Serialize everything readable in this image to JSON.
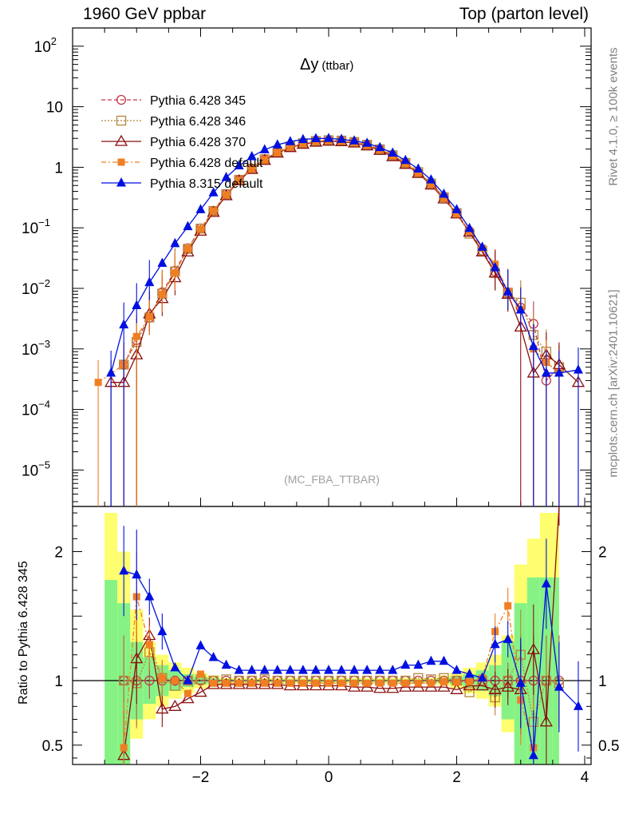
{
  "header": {
    "left": "1960 GeV ppbar",
    "right": "Top (parton level)"
  },
  "side": {
    "rivet": "Rivet 4.1.0, ≥ 100k events",
    "mcplots": "mcplots.cern.ch [arXiv:2401.10621]"
  },
  "colors": {
    "p345": "#c0394b",
    "p346": "#b5853a",
    "p370": "#8b0f0f",
    "pdef": "#f07e22",
    "p8": "#0010e0",
    "band_inner": "#86f286",
    "band_outer": "#fefe6e"
  },
  "chart_data": {
    "type": "line",
    "title": "Δy",
    "title_sub": "(ttbar)",
    "analysis_label": "(MC_FBA_TTBAR)",
    "xlabel": "",
    "ylabel": "",
    "ratio_ylabel": "Ratio to Pythia 6.428 345",
    "xlim": [
      -4.0,
      4.1
    ],
    "ylim": [
      2.5e-06,
      200
    ],
    "yscale": "log",
    "ratio_ylim": [
      0.35,
      2.35
    ],
    "x_ticks": [
      -2,
      0,
      2,
      4
    ],
    "x_tick_labels": [
      "−2",
      "0",
      "2",
      "4"
    ],
    "y_ticks": [
      {
        "exp": "2",
        "base": "10",
        "value": 100
      },
      {
        "exp": "",
        "base": "10",
        "value": 10
      },
      {
        "exp": "",
        "base": "1",
        "value": 1
      },
      {
        "exp": "−1",
        "base": "10",
        "value": 0.1
      },
      {
        "exp": "−2",
        "base": "10",
        "value": 0.01
      },
      {
        "exp": "−3",
        "base": "10",
        "value": 0.001
      },
      {
        "exp": "−4",
        "base": "10",
        "value": 0.0001
      },
      {
        "exp": "−5",
        "base": "10",
        "value": 1e-05
      }
    ],
    "ratio_ticks": [
      {
        "label": "2",
        "value": 2
      },
      {
        "label": "1",
        "value": 1
      },
      {
        "label": "0.5",
        "value": 0.5
      }
    ],
    "x": [
      -3.6,
      -3.4,
      -3.2,
      -3.0,
      -2.8,
      -2.6,
      -2.4,
      -2.2,
      -2.0,
      -1.8,
      -1.6,
      -1.4,
      -1.2,
      -1.0,
      -0.8,
      -0.6,
      -0.4,
      -0.2,
      0.0,
      0.2,
      0.4,
      0.6,
      0.8,
      1.0,
      1.2,
      1.4,
      1.6,
      1.8,
      2.0,
      2.2,
      2.4,
      2.6,
      2.8,
      3.0,
      3.2,
      3.4,
      3.6,
      3.9
    ],
    "series": [
      {
        "name": "Pythia 6.428 345",
        "color": "#c0394b",
        "marker": "circle-open",
        "dash": "5,3",
        "values": [
          null,
          null,
          0.00055,
          0.0014,
          0.0033,
          0.0086,
          0.0195,
          0.046,
          0.098,
          0.19,
          0.36,
          0.62,
          0.95,
          1.35,
          1.78,
          2.2,
          2.5,
          2.72,
          2.8,
          2.76,
          2.62,
          2.36,
          1.98,
          1.58,
          1.18,
          0.82,
          0.54,
          0.32,
          0.175,
          0.088,
          0.042,
          0.019,
          0.0086,
          0.0048,
          0.0026,
          0.0003,
          0.0005,
          null
        ],
        "ratio": [
          null,
          null,
          1.0,
          1.0,
          1.0,
          1.0,
          1.0,
          1.0,
          1.0,
          1.0,
          1.0,
          1.0,
          1.0,
          1.0,
          1.0,
          1.0,
          1.0,
          1.0,
          1.0,
          1.0,
          1.0,
          1.0,
          1.0,
          1.0,
          1.0,
          1.0,
          1.0,
          1.0,
          1.0,
          1.0,
          1.0,
          1.0,
          1.0,
          1.0,
          1.0,
          1.0,
          1.0,
          null
        ]
      },
      {
        "name": "Pythia 6.428 346",
        "color": "#b5853a",
        "marker": "square-open",
        "dash": "2,2",
        "values": [
          null,
          null,
          0.00055,
          0.0013,
          0.0033,
          0.0082,
          0.019,
          0.045,
          0.097,
          0.19,
          0.36,
          0.62,
          0.95,
          1.36,
          1.78,
          2.2,
          2.5,
          2.72,
          2.8,
          2.76,
          2.62,
          2.36,
          1.98,
          1.58,
          1.18,
          0.83,
          0.54,
          0.32,
          0.175,
          0.08,
          0.042,
          0.018,
          0.0085,
          0.0058,
          0.0017,
          0.0009,
          0.0005,
          null
        ],
        "ratio": [
          null,
          null,
          1.0,
          0.98,
          1.22,
          1.02,
          0.96,
          1.0,
          1.01,
          1.0,
          1.01,
          1.0,
          1.0,
          1.01,
          1.0,
          1.0,
          1.0,
          1.0,
          1.0,
          1.0,
          1.0,
          1.0,
          1.0,
          1.0,
          1.0,
          1.02,
          1.01,
          1.02,
          1.0,
          0.91,
          1.0,
          0.87,
          1.0,
          1.2,
          0.68,
          1.0,
          0.98,
          null
        ]
      },
      {
        "name": "Pythia 6.428 370",
        "color": "#8b0f0f",
        "marker": "triangle-open",
        "dash": "",
        "values": [
          null,
          0.00028,
          0.00028,
          0.0008,
          0.0038,
          0.0068,
          0.015,
          0.04,
          0.088,
          0.18,
          0.34,
          0.6,
          0.92,
          1.3,
          1.72,
          2.12,
          2.4,
          2.6,
          2.7,
          2.65,
          2.52,
          2.26,
          1.9,
          1.5,
          1.12,
          0.79,
          0.51,
          0.3,
          0.17,
          0.085,
          0.04,
          0.018,
          0.008,
          0.0023,
          0.0004,
          0.0008,
          0.00055,
          0.00028
        ],
        "ratio": [
          null,
          null,
          0.42,
          1.17,
          1.35,
          0.78,
          0.8,
          0.86,
          0.91,
          0.97,
          0.97,
          0.97,
          0.97,
          0.97,
          0.97,
          0.96,
          0.96,
          0.96,
          0.96,
          0.96,
          0.95,
          0.95,
          0.94,
          0.94,
          0.95,
          0.95,
          0.95,
          0.95,
          0.93,
          0.96,
          0.96,
          0.93,
          0.95,
          0.93,
          1.24,
          0.68,
          2.55,
          null
        ]
      },
      {
        "name": "Pythia 6.428 default",
        "color": "#f07e22",
        "marker": "square-filled",
        "dash": "6,3,2,3",
        "values": [
          0.00028,
          null,
          0.00055,
          0.0016,
          0.0034,
          0.008,
          0.018,
          0.045,
          0.095,
          0.19,
          0.35,
          0.61,
          0.94,
          1.33,
          1.75,
          2.16,
          2.46,
          2.68,
          2.76,
          2.72,
          2.58,
          2.32,
          1.95,
          1.55,
          1.16,
          0.81,
          0.53,
          0.31,
          0.17,
          0.087,
          0.046,
          0.025,
          0.009,
          0.0045,
          0.001,
          0.0006,
          0.0004,
          null
        ],
        "ratio": [
          null,
          null,
          0.48,
          1.65,
          1.28,
          1.02,
          1.0,
          0.9,
          1.05,
          0.98,
          0.98,
          0.98,
          0.98,
          0.98,
          0.98,
          0.98,
          0.98,
          0.98,
          0.98,
          0.98,
          0.98,
          0.98,
          0.98,
          0.98,
          0.98,
          0.98,
          0.98,
          0.99,
          0.99,
          0.99,
          1.02,
          1.38,
          1.58,
          0.85,
          0.48,
          null,
          null,
          null
        ]
      },
      {
        "name": "Pythia 8.315 default",
        "color": "#0010e0",
        "marker": "triangle-filled",
        "dash": "",
        "values": [
          null,
          0.0004,
          0.0025,
          0.0052,
          0.0125,
          0.026,
          0.055,
          0.105,
          0.2,
          0.38,
          0.68,
          1.06,
          1.5,
          1.95,
          2.35,
          2.66,
          2.88,
          2.98,
          3.0,
          2.9,
          2.74,
          2.5,
          2.12,
          1.72,
          1.3,
          0.94,
          0.62,
          0.36,
          0.2,
          0.098,
          0.048,
          0.022,
          0.0088,
          0.0044,
          0.0011,
          0.0004,
          0.0004,
          0.00045
        ],
        "ratio": [
          null,
          null,
          1.85,
          1.82,
          1.65,
          1.38,
          1.1,
          1.0,
          1.27,
          1.18,
          1.12,
          1.08,
          1.08,
          1.08,
          1.08,
          1.08,
          1.08,
          1.08,
          1.08,
          1.08,
          1.08,
          1.08,
          1.08,
          1.08,
          1.12,
          1.12,
          1.15,
          1.15,
          1.08,
          1.05,
          1.02,
          1.28,
          1.32,
          0.98,
          0.42,
          1.75,
          0.95,
          0.8
        ]
      }
    ],
    "band": {
      "x_edges": [
        -3.5,
        -3.3,
        -3.1,
        -2.9,
        -2.7,
        -2.5,
        -2.3,
        -2.1,
        -1.9,
        -1.7,
        1.7,
        1.9,
        2.1,
        2.3,
        2.5,
        2.7,
        2.9,
        3.1,
        3.3,
        3.5,
        3.6
      ],
      "inner": [
        [
          0.25,
          1.78
        ],
        [
          0.35,
          1.6
        ],
        [
          0.7,
          1.3
        ],
        [
          0.82,
          1.18
        ],
        [
          0.88,
          1.12
        ],
        [
          0.92,
          1.08
        ],
        [
          0.95,
          1.05
        ],
        [
          0.97,
          1.03
        ],
        [
          0.98,
          1.02
        ],
        [
          0.99,
          1.01
        ],
        [
          0.98,
          1.02
        ],
        [
          0.97,
          1.03
        ],
        [
          0.95,
          1.05
        ],
        [
          0.92,
          1.08
        ],
        [
          0.88,
          1.12
        ],
        [
          0.7,
          1.3
        ],
        [
          0.3,
          1.6
        ],
        [
          0.2,
          1.8
        ],
        [
          0.2,
          1.8
        ],
        [
          0.2,
          1.8
        ]
      ],
      "outer": [
        [
          0.2,
          2.3
        ],
        [
          0.2,
          2.0
        ],
        [
          0.55,
          1.55
        ],
        [
          0.7,
          1.3
        ],
        [
          0.8,
          1.2
        ],
        [
          0.86,
          1.14
        ],
        [
          0.9,
          1.1
        ],
        [
          0.94,
          1.06
        ],
        [
          0.96,
          1.04
        ],
        [
          0.98,
          1.02
        ],
        [
          0.96,
          1.04
        ],
        [
          0.94,
          1.06
        ],
        [
          0.9,
          1.1
        ],
        [
          0.86,
          1.14
        ],
        [
          0.8,
          1.2
        ],
        [
          0.6,
          1.35
        ],
        [
          0.25,
          1.9
        ],
        [
          0.2,
          2.1
        ],
        [
          0.2,
          2.3
        ],
        [
          0.2,
          2.3
        ]
      ]
    }
  }
}
